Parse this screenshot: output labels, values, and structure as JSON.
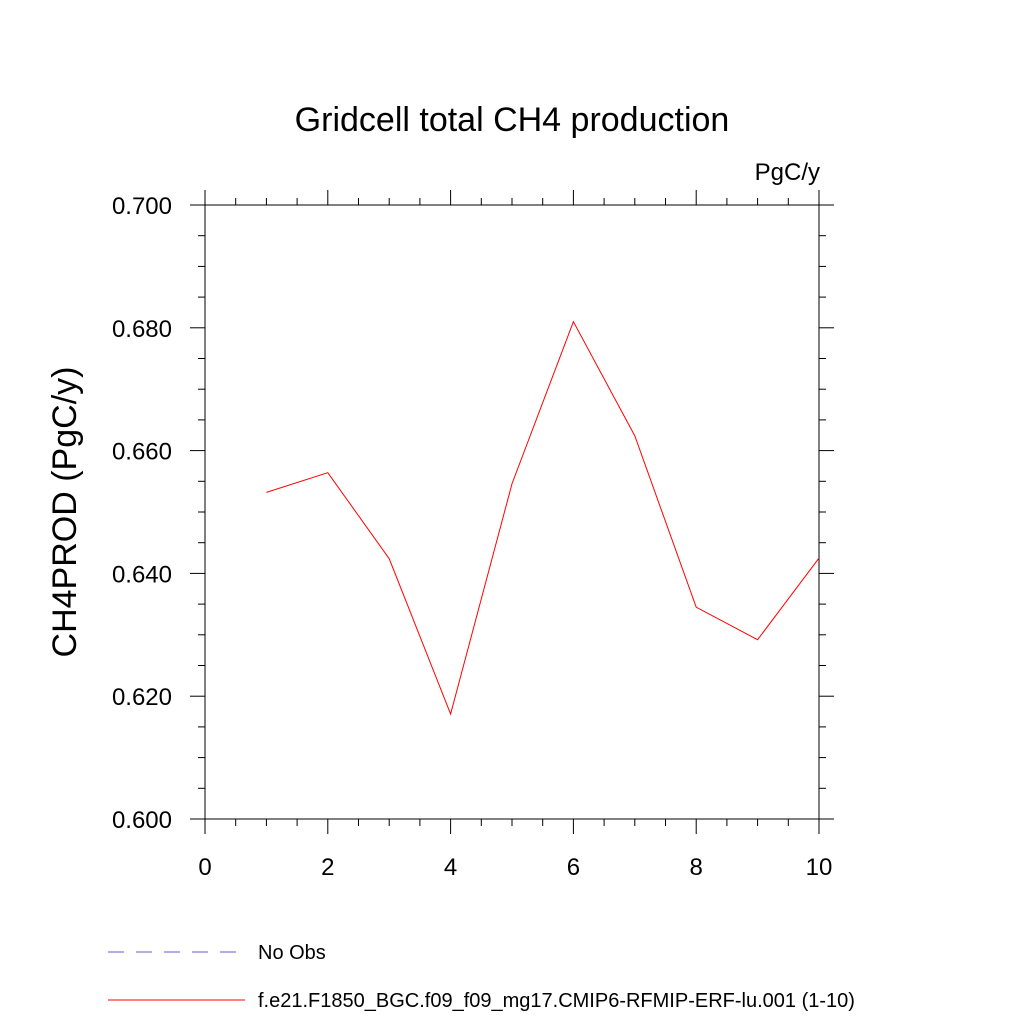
{
  "chart_data": {
    "type": "line",
    "title": "Gridcell total CH4 production",
    "units_label": "PgC/y",
    "ylabel": "CH4PROD  (PgC/y)",
    "xlabel": "",
    "xlim": [
      0,
      10
    ],
    "ylim": [
      0.6,
      0.7
    ],
    "x_ticks": [
      0,
      2,
      4,
      6,
      8,
      10
    ],
    "x_tick_labels": [
      "0",
      "2",
      "4",
      "6",
      "8",
      "10"
    ],
    "y_ticks": [
      0.6,
      0.62,
      0.64,
      0.66,
      0.68,
      0.7
    ],
    "y_tick_labels": [
      "0.600",
      "0.620",
      "0.640",
      "0.660",
      "0.680",
      "0.700"
    ],
    "grid": false,
    "legend_position": "bottom-left",
    "series": [
      {
        "name": "f.e21.F1850_BGC.f09_f09_mg17.CMIP6-RFMIP-ERF-lu.001 (1-10)",
        "color": "#ff0000",
        "style": "solid",
        "x": [
          1,
          2,
          3,
          4,
          5,
          6,
          7,
          8,
          9,
          10
        ],
        "y": [
          0.6532,
          0.6564,
          0.6424,
          0.6171,
          0.6546,
          0.681,
          0.6624,
          0.6345,
          0.6292,
          0.6425
        ]
      }
    ],
    "legend": [
      {
        "label": "No Obs",
        "color": "#6a5acd",
        "style": "dashed"
      },
      {
        "label": "f.e21.F1850_BGC.f09_f09_mg17.CMIP6-RFMIP-ERF-lu.001 (1-10)",
        "color": "#ff0000",
        "style": "solid"
      }
    ]
  }
}
